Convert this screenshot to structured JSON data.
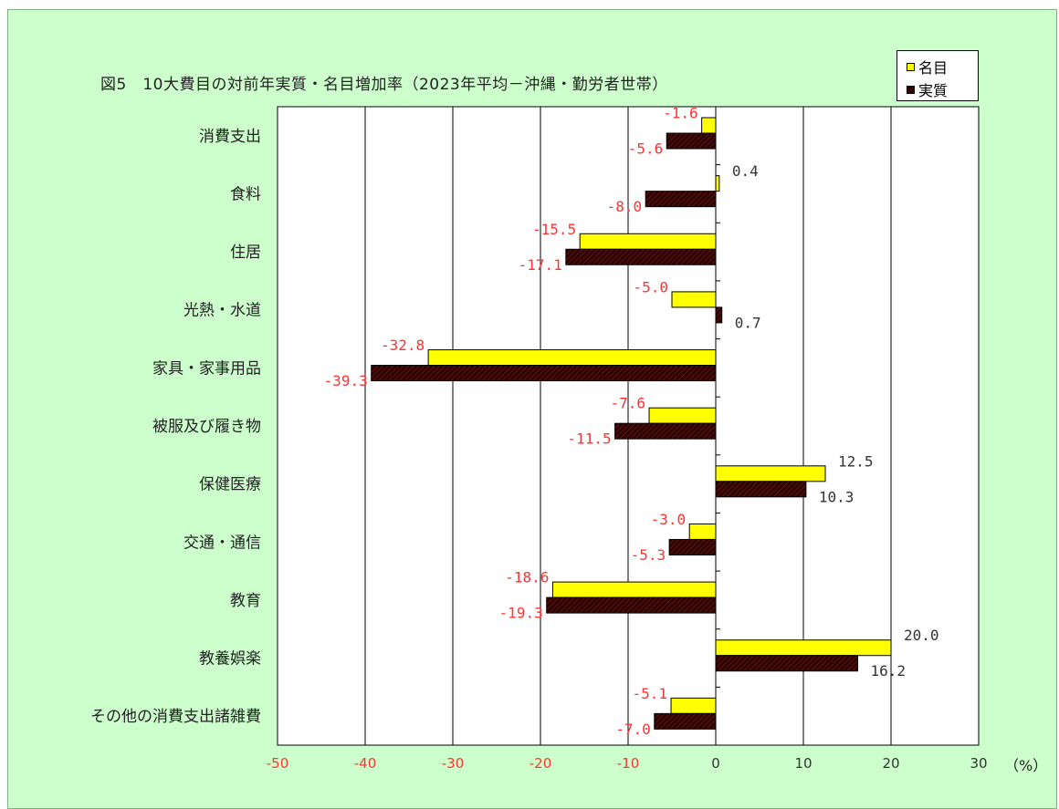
{
  "title": "図5　10大費目の対前年実質・名目増加率（2023年平均－沖縄・勤労者世帯）",
  "unit_label": "（%）",
  "legend": [
    {
      "name": "名目",
      "color": "#ffff00"
    },
    {
      "name": "実質",
      "color": "#330000"
    }
  ],
  "colors": {
    "background": "#ccffcc",
    "plot_background": "#ffffff",
    "nominal_bar": "#ffff00",
    "real_bar": "#330000",
    "negative_label": "#ff3333",
    "positive_label": "#333333"
  },
  "chart_data": {
    "type": "bar",
    "orientation": "horizontal",
    "categories": [
      "消費支出",
      "食料",
      "住居",
      "光熱・水道",
      "家具・家事用品",
      "被服及び履き物",
      "保健医療",
      "交通・通信",
      "教育",
      "教養娯楽",
      "その他の消費支出諸雑費"
    ],
    "series": [
      {
        "name": "名目",
        "values": [
          -1.6,
          0.4,
          -15.5,
          -5.0,
          -32.8,
          -7.6,
          12.5,
          -3.0,
          -18.6,
          20.0,
          -5.1
        ]
      },
      {
        "name": "実質",
        "values": [
          -5.6,
          -8.0,
          -17.1,
          0.7,
          -39.3,
          -11.5,
          10.3,
          -5.3,
          -19.3,
          16.2,
          -7.0
        ]
      }
    ],
    "value_labels": {
      "名目": [
        "-1.6",
        "0.4",
        "-15.5",
        "-5.0",
        "-32.8",
        "-7.6",
        "12.5",
        "-3.0",
        "-18.6",
        "20.0",
        "-5.1"
      ],
      "実質": [
        "-5.6",
        "-8.0",
        "-17.1",
        "0.7",
        "-39.3",
        "-11.5",
        "10.3",
        "-5.3",
        "-19.3",
        "16.2",
        "-7.0"
      ]
    },
    "xlim": [
      -50,
      30
    ],
    "xticks": [
      -50,
      -40,
      -30,
      -20,
      -10,
      0,
      10,
      20,
      30
    ],
    "xtick_labels": [
      "-50",
      "-40",
      "-30",
      "-20",
      "-10",
      "0",
      "10",
      "20",
      "30"
    ],
    "xlabel": "",
    "ylabel": "",
    "grid": true,
    "legend_position": "top-right"
  }
}
